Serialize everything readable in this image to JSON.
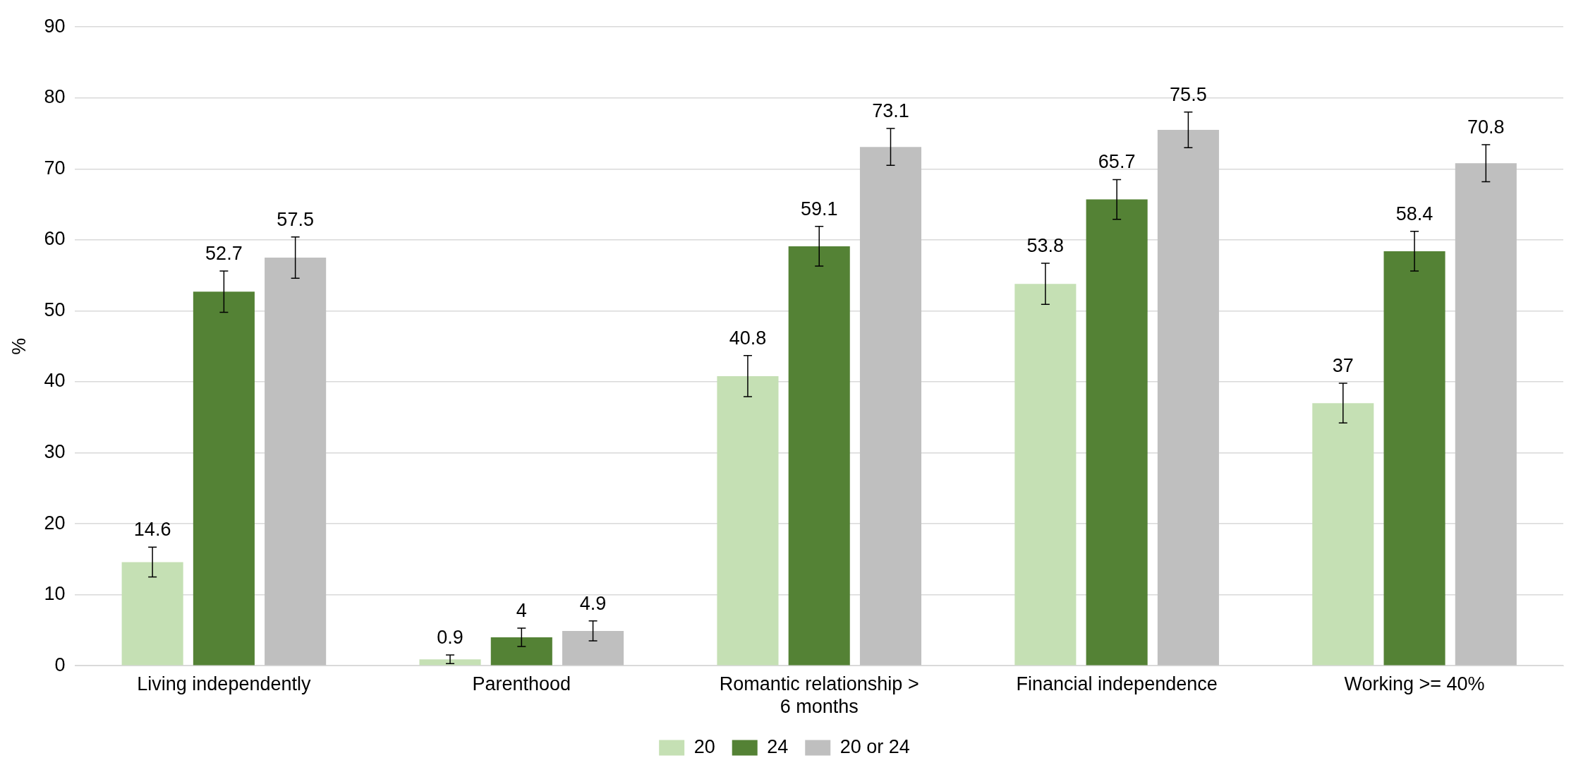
{
  "chart_data": {
    "type": "bar",
    "ylabel": "%",
    "categories": [
      "Living independently",
      "Parenthood",
      "Romantic relationship > 6 months",
      "Financial independence",
      "Working >= 40%"
    ],
    "series": [
      {
        "name": "20",
        "color": "#c5e0b4",
        "values": [
          14.6,
          0.9,
          40.8,
          53.8,
          37
        ],
        "errors": [
          2.1,
          0.6,
          2.9,
          2.9,
          2.8
        ]
      },
      {
        "name": "24",
        "color": "#548235",
        "values": [
          52.7,
          4,
          59.1,
          65.7,
          58.4
        ],
        "errors": [
          2.9,
          1.3,
          2.8,
          2.8,
          2.8
        ]
      },
      {
        "name": "20 or 24",
        "color": "#bfbfbf",
        "values": [
          57.5,
          4.9,
          73.1,
          75.5,
          70.8
        ],
        "errors": [
          2.9,
          1.4,
          2.6,
          2.5,
          2.6
        ]
      }
    ],
    "ylim": [
      0,
      90
    ],
    "yticks": [
      0,
      10,
      20,
      30,
      40,
      50,
      60,
      70,
      80,
      90
    ],
    "grid": "y",
    "legend": "bottom",
    "data_labels": true
  }
}
